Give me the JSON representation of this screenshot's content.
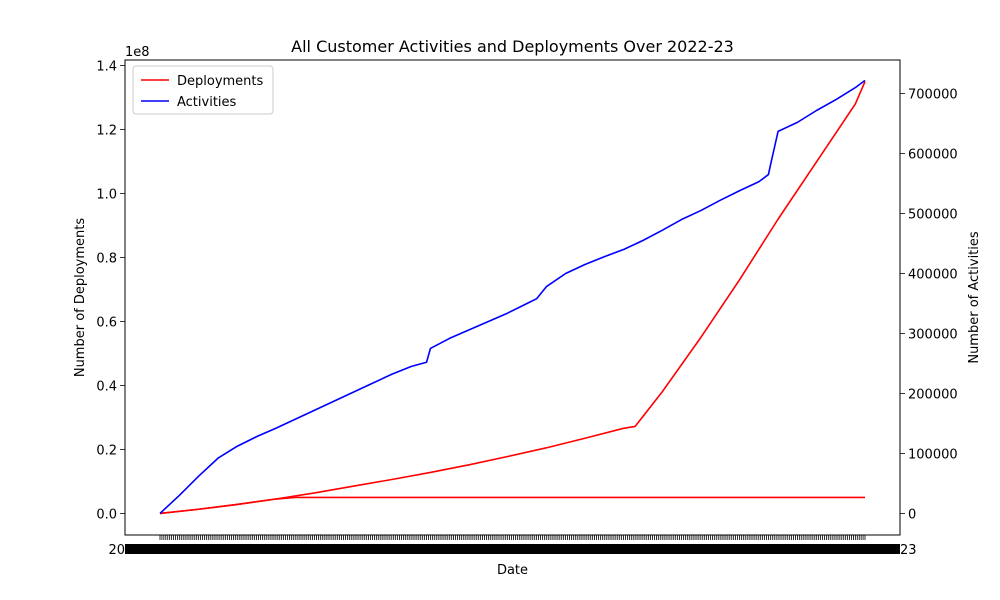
{
  "chart_data": {
    "type": "line",
    "title": "All Customer Activities and Deployments Over 2022-23",
    "xlabel": "Date",
    "ylabel_left": "Number of Deployments",
    "ylabel_right": "Number of Activities",
    "left_offset_text": "1e8",
    "left_axis": {
      "ylim": [
        -0.0675,
        1.4175
      ],
      "ticks": [
        0.0,
        0.2,
        0.4,
        0.6,
        0.8,
        1.0,
        1.2,
        1.4
      ],
      "tick_labels": [
        "0.0",
        "0.2",
        "0.4",
        "0.6",
        "0.8",
        "1.0",
        "1.2",
        "1.4"
      ]
    },
    "right_axis": {
      "ylim": [
        -36000,
        756000
      ],
      "ticks": [
        0,
        100000,
        200000,
        300000,
        400000,
        500000,
        600000,
        700000
      ],
      "tick_labels": [
        "0",
        "100000",
        "200000",
        "300000",
        "400000",
        "500000",
        "600000",
        "700000"
      ]
    },
    "x_axis": {
      "tick_count": 366,
      "label_edge_start": "20",
      "label_edge_end": "23"
    },
    "legend": {
      "placement": "upper-left"
    },
    "colors": {
      "deployments": "#ff0000",
      "activities": "#0000ff"
    },
    "series": [
      {
        "name": "Deployments",
        "axis": "left",
        "color": "#ff0000",
        "x": [
          0,
          20,
          40,
          60,
          80,
          100,
          120,
          140,
          160,
          180,
          200,
          220,
          240,
          246,
          260,
          280,
          300,
          320,
          340,
          360,
          365
        ],
        "values": [
          0.0,
          0.013,
          0.028,
          0.045,
          0.064,
          0.085,
          0.106,
          0.128,
          0.152,
          0.178,
          0.205,
          0.235,
          0.266,
          0.272,
          0.38,
          0.55,
          0.73,
          0.92,
          1.1,
          1.28,
          1.35
        ]
      },
      {
        "name": "",
        "axis": "left",
        "color": "#ff0000",
        "x": [
          0,
          20,
          40,
          60,
          70,
          365
        ],
        "values": [
          0.0,
          0.013,
          0.028,
          0.045,
          0.05,
          0.05
        ]
      },
      {
        "name": "Activities",
        "axis": "right",
        "color": "#0000ff",
        "x": [
          0,
          10,
          20,
          30,
          40,
          50,
          60,
          70,
          80,
          90,
          100,
          110,
          120,
          130,
          138,
          140,
          150,
          160,
          170,
          180,
          190,
          195,
          200,
          210,
          220,
          230,
          240,
          250,
          260,
          270,
          280,
          290,
          300,
          310,
          315,
          316,
          320,
          330,
          340,
          350,
          360,
          365
        ],
        "values": [
          0,
          30000,
          62000,
          92000,
          112000,
          128000,
          142000,
          157000,
          172000,
          187000,
          202000,
          217000,
          232000,
          245000,
          252000,
          275000,
          292000,
          306000,
          320000,
          334000,
          350000,
          358000,
          378000,
          400000,
          415000,
          428000,
          440000,
          455000,
          472000,
          490000,
          505000,
          522000,
          538000,
          553000,
          565000,
          580000,
          637000,
          652000,
          672000,
          690000,
          710000,
          722000
        ]
      }
    ]
  }
}
